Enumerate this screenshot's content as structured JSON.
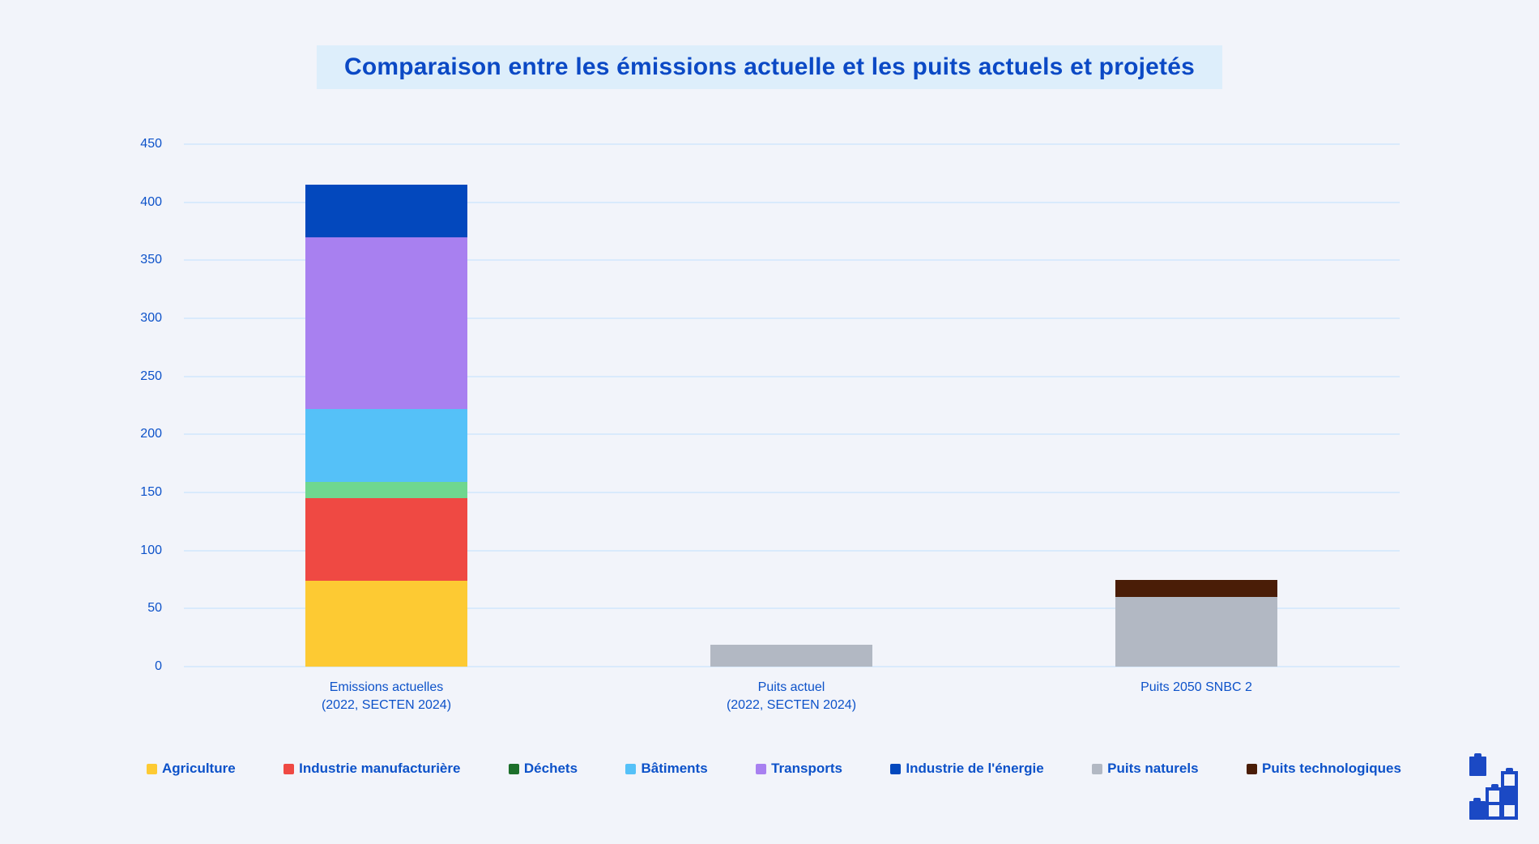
{
  "title": "Comparaison entre les émissions actuelle et les puits actuels et projetés",
  "logo": {
    "name": "battery-stack-logo",
    "color": "#1b49c4"
  },
  "chart_data": {
    "type": "bar",
    "stacked": true,
    "title": "Comparaison entre les émissions actuelle et les puits actuels et projetés",
    "categories": [
      [
        "Emissions actuelles",
        "(2022, SECTEN 2024)"
      ],
      [
        "Puits actuel",
        "(2022, SECTEN 2024)"
      ],
      [
        "Puits 2050 SNBC 2"
      ]
    ],
    "series": [
      {
        "name": "Agriculture",
        "color": "#fdca33",
        "values": [
          74,
          0,
          0
        ]
      },
      {
        "name": "Industrie manufacturière",
        "color": "#ef4943",
        "values": [
          71,
          0,
          0
        ]
      },
      {
        "name": "Déchets",
        "color": "#6fd78f",
        "legend_color": "#1d6f2b",
        "values": [
          14,
          0,
          0
        ]
      },
      {
        "name": "Bâtiments",
        "color": "#55c1f8",
        "values": [
          63,
          0,
          0
        ]
      },
      {
        "name": "Transports",
        "color": "#a880f0",
        "values": [
          148,
          0,
          0
        ]
      },
      {
        "name": "Industrie de l'énergie",
        "color": "#0348bd",
        "values": [
          45,
          0,
          0
        ]
      },
      {
        "name": "Puits naturels",
        "color": "#b2b8c3",
        "values": [
          0,
          19,
          60
        ]
      },
      {
        "name": "Puits technologiques",
        "color": "#4a1d07",
        "values": [
          0,
          0,
          15
        ]
      }
    ],
    "xlabel": "",
    "ylabel": "",
    "ylim": [
      0,
      450
    ],
    "ytick_step": 50,
    "grid": true,
    "legend_position": "bottom",
    "gridline_color": "#d9eafc",
    "background_color": "#f2f4fa",
    "text_color": "#0d52c9"
  }
}
